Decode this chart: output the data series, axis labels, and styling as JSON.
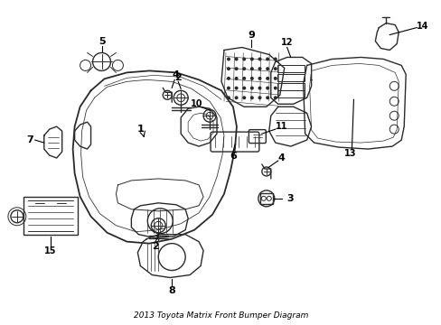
{
  "title": "2013 Toyota Matrix Front Bumper Diagram",
  "background_color": "#ffffff",
  "line_color": "#2a2a2a",
  "text_color": "#000000",
  "fig_width": 4.89,
  "fig_height": 3.6,
  "dpi": 100
}
